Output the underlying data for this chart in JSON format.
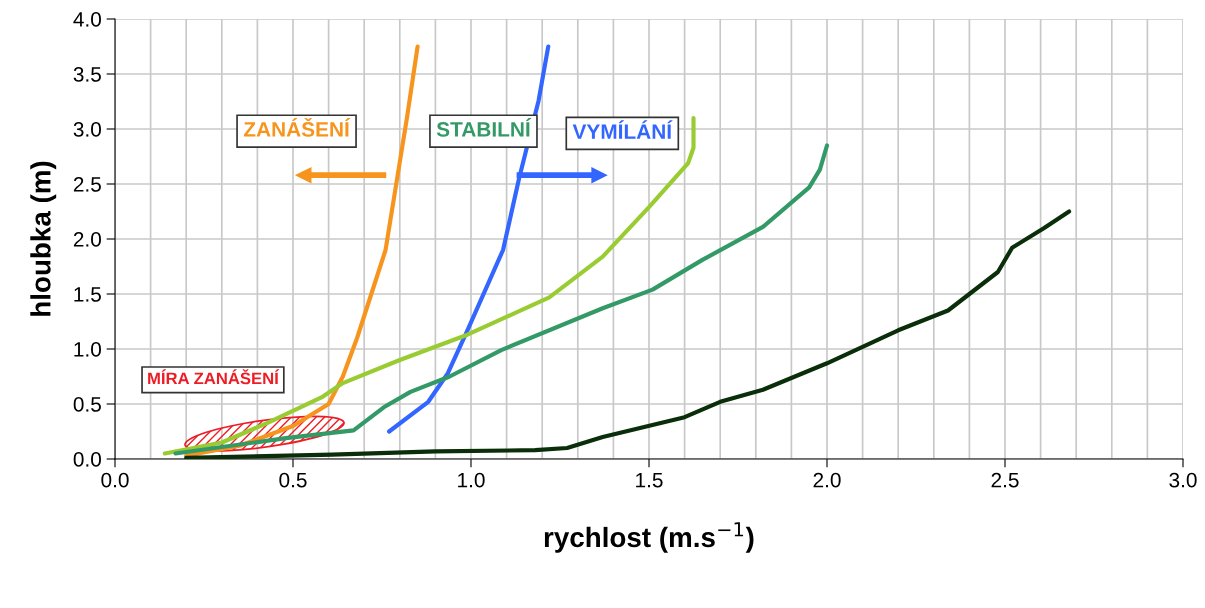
{
  "chart_data": {
    "type": "line",
    "xlabel": "rychlost (m.s$^{−1}$)",
    "ylabel": "hloubka (m)",
    "annotations": [
      "ZANÁŠENÍ",
      "STABILNÍ",
      "VYMÍLÁNÍ",
      "MÍRA ZANÁŠENÍ"
    ],
    "xlim": [
      0,
      3
    ],
    "ylim": [
      0,
      4
    ],
    "xticks": [
      {
        "value": 0,
        "label": "0.0"
      },
      {
        "value": 0.5,
        "label": "0.5"
      },
      {
        "value": 1,
        "label": "1.0"
      },
      {
        "value": 1.5,
        "label": "1.5"
      },
      {
        "value": 2,
        "label": "2.0"
      },
      {
        "value": 2.5,
        "label": "2.5"
      },
      {
        "value": 3,
        "label": "3.0"
      }
    ],
    "yticks": [
      {
        "value": 0,
        "label": "0.0"
      },
      {
        "value": 0.5,
        "label": "0.5"
      },
      {
        "value": 1,
        "label": "1.0"
      },
      {
        "value": 1.5,
        "label": "1.5"
      },
      {
        "value": 2,
        "label": "2.0"
      },
      {
        "value": 2.5,
        "label": "2.5"
      },
      {
        "value": 3,
        "label": "3.0"
      },
      {
        "value": 3.5,
        "label": "3.5"
      },
      {
        "value": 4,
        "label": "4.0"
      }
    ],
    "grid": true,
    "marker": "none",
    "line_style": "solid",
    "series": [
      {
        "color": "#f7941d",
        "x": [
          0.2,
          0.35,
          0.5,
          0.6,
          0.64,
          0.68,
          0.72,
          0.76,
          0.79,
          0.82,
          0.85
        ],
        "values": [
          0.03,
          0.12,
          0.3,
          0.5,
          0.75,
          1.1,
          1.5,
          1.9,
          2.5,
          3.1,
          3.75
        ]
      },
      {
        "color": "#3366ff",
        "x": [
          0.77,
          0.88,
          0.935,
          0.99,
          1.09,
          1.135,
          1.19,
          1.217
        ],
        "values": [
          0.25,
          0.52,
          0.78,
          1.17,
          1.9,
          2.55,
          3.26,
          3.75
        ]
      },
      {
        "color": "#99cc33",
        "x": [
          0.14,
          0.3,
          0.43,
          0.58,
          0.64,
          0.8,
          0.99,
          1.22,
          1.37,
          1.5,
          1.61,
          1.625,
          1.625
        ],
        "values": [
          0.05,
          0.15,
          0.33,
          0.56,
          0.69,
          0.9,
          1.13,
          1.47,
          1.84,
          2.29,
          2.69,
          2.83,
          3.1
        ]
      },
      {
        "color": "#339966",
        "x": [
          0.17,
          0.48,
          0.67,
          0.755,
          0.83,
          0.94,
          1.085,
          1.37,
          1.51,
          1.65,
          1.82,
          1.95,
          1.98,
          2.0
        ],
        "values": [
          0.05,
          0.19,
          0.26,
          0.47,
          0.61,
          0.75,
          0.99,
          1.37,
          1.54,
          1.81,
          2.11,
          2.47,
          2.63,
          2.85
        ]
      },
      {
        "color": "#0a2e0a",
        "x": [
          0.2,
          0.61,
          0.9,
          1.18,
          1.27,
          1.37,
          1.6,
          1.7,
          1.82,
          2.0,
          2.2,
          2.34,
          2.48,
          2.52,
          2.61,
          2.68
        ],
        "values": [
          0.01,
          0.04,
          0.07,
          0.08,
          0.1,
          0.2,
          0.38,
          0.52,
          0.63,
          0.87,
          1.17,
          1.35,
          1.7,
          1.92,
          2.1,
          2.25
        ]
      }
    ]
  }
}
